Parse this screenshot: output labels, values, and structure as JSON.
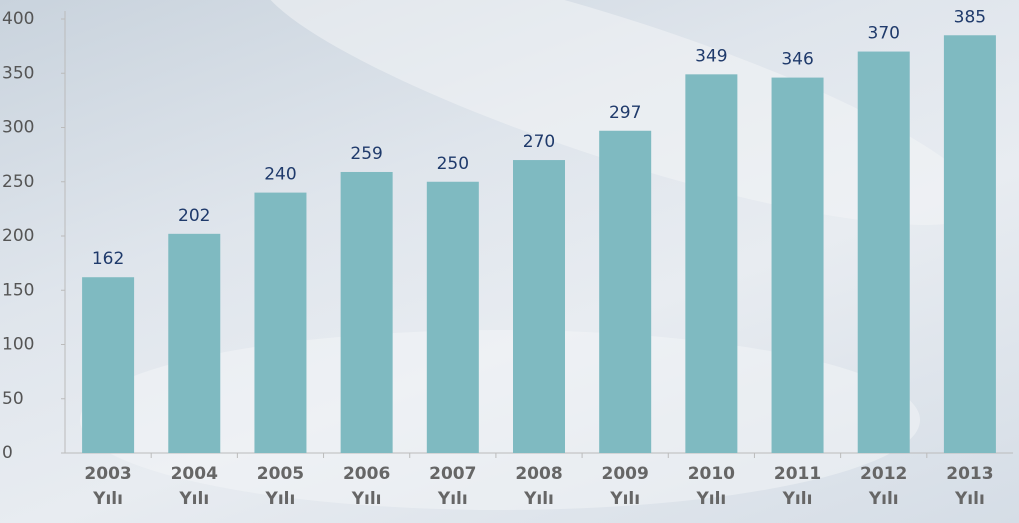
{
  "chart_data": {
    "type": "bar",
    "categories": [
      "2003 Yılı",
      "2004 Yılı",
      "2005 Yılı",
      "2006 Yılı",
      "2007 Yılı",
      "2008 Yılı",
      "2009 Yılı",
      "2010 Yılı",
      "2011 Yılı",
      "2012 Yılı",
      "2013 Yılı"
    ],
    "values": [
      162,
      202,
      240,
      259,
      250,
      270,
      297,
      349,
      346,
      370,
      385
    ],
    "color": "#7fbac1",
    "ylim": [
      0,
      400
    ],
    "yticks": [
      0,
      50,
      100,
      150,
      200,
      250,
      300,
      350,
      400
    ],
    "grid": false
  }
}
